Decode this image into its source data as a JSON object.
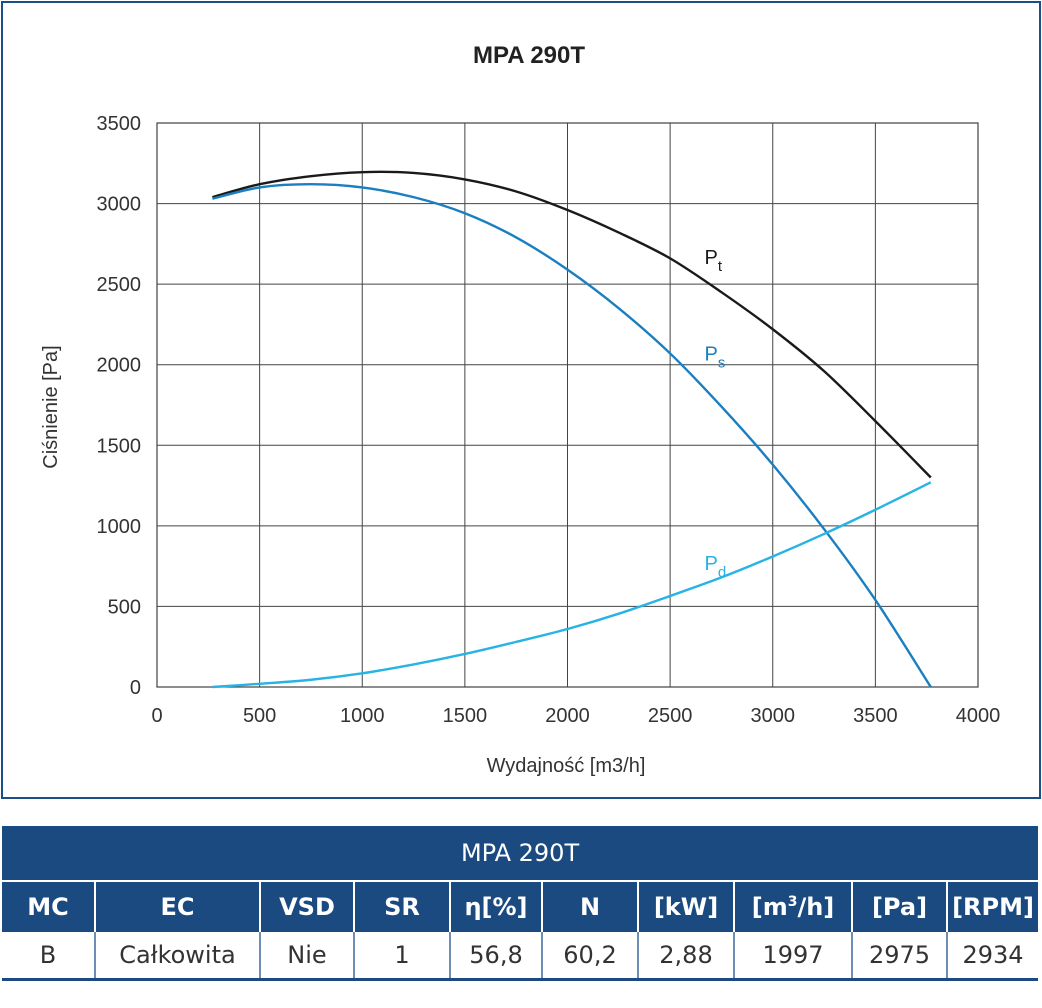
{
  "chart_data": {
    "type": "line",
    "title": "MPA 290T",
    "xlabel": "Wydajność [m3/h]",
    "ylabel": "Ciśnienie [Pa]",
    "xlim": [
      0,
      4000
    ],
    "ylim": [
      0,
      3500
    ],
    "x_ticks": [
      "0",
      "500",
      "1000",
      "1500",
      "2000",
      "2500",
      "3000",
      "3500",
      "4000"
    ],
    "y_ticks": [
      "0",
      "500",
      "1000",
      "1500",
      "2000",
      "2500",
      "3000",
      "3500"
    ],
    "grid": true,
    "series": [
      {
        "name": "Pt",
        "color": "#1a1a1a",
        "x": [
          270,
          500,
          750,
          1000,
          1250,
          1500,
          1750,
          2000,
          2250,
          2500,
          2750,
          3000,
          3250,
          3500,
          3770
        ],
        "y": [
          3040,
          3120,
          3170,
          3195,
          3190,
          3150,
          3075,
          2960,
          2820,
          2660,
          2450,
          2220,
          1960,
          1650,
          1300
        ]
      },
      {
        "name": "Ps",
        "color": "#1a7fc1",
        "x": [
          270,
          500,
          750,
          1000,
          1250,
          1500,
          1750,
          2000,
          2250,
          2500,
          2750,
          3000,
          3250,
          3500,
          3770
        ],
        "y": [
          3030,
          3100,
          3120,
          3100,
          3040,
          2940,
          2790,
          2590,
          2350,
          2070,
          1740,
          1380,
          980,
          540,
          0
        ]
      },
      {
        "name": "Pd",
        "color": "#27b3e4",
        "x": [
          270,
          500,
          750,
          1000,
          1250,
          1500,
          1750,
          2000,
          2250,
          2500,
          2750,
          3000,
          3250,
          3500,
          3770
        ],
        "y": [
          0,
          20,
          45,
          85,
          140,
          205,
          280,
          360,
          455,
          565,
          680,
          810,
          950,
          1100,
          1270
        ]
      }
    ],
    "labels": [
      {
        "series": "Pt",
        "main": "P",
        "sub": "t",
        "x": 2580,
        "y": 2650
      },
      {
        "series": "Ps",
        "main": "P",
        "sub": "s",
        "x": 2580,
        "y": 2050
      },
      {
        "series": "Pd",
        "main": "P",
        "sub": "d",
        "x": 2580,
        "y": 750
      }
    ]
  },
  "table": {
    "title": "MPA 290T",
    "headers": [
      "MC",
      "EC",
      "VSD",
      "SR",
      "η[%]",
      "N",
      "[kW]",
      "[m3/h]",
      "[Pa]",
      "[RPM]"
    ],
    "values": [
      "B",
      "Całkowita",
      "Nie",
      "1",
      "56,8",
      "60,2",
      "2,88",
      "1997",
      "2975",
      "2934"
    ]
  }
}
